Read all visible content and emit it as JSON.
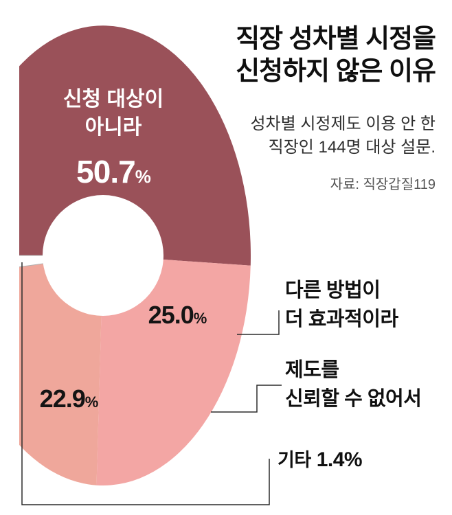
{
  "ui": {
    "title": {
      "line1": "직장 성차별 시정을",
      "line2": "신청하지 않은 이유"
    },
    "subtitle": {
      "line1": "성차별 시정제도 이용 안 한",
      "line2": "직장인 144명 대상 설문."
    },
    "source": "자료: 직장갑질119",
    "slice1": {
      "line1": "신청 대상이",
      "line2": "아니라",
      "value": "50.7",
      "pct": "%"
    },
    "slice2": {
      "value": "25.0",
      "pct": "%"
    },
    "slice3": {
      "value": "22.9",
      "pct": "%"
    },
    "callout_method": {
      "line1": "다른 방법이",
      "line2": "더 효과적이라"
    },
    "callout_trust": {
      "line1": "제도를",
      "line2": "신뢰할 수 없어서"
    },
    "callout_other": {
      "label": "기타",
      "value": "1.4%"
    }
  },
  "chart_data": {
    "type": "pie",
    "title": "직장 성차별 시정을 신청하지 않은 이유",
    "subtitle": "성차별 시정제도 이용 안 한 직장인 144명 대상 설문.",
    "source": "자료: 직장갑질119",
    "unit": "%",
    "donut": true,
    "start": "west-clockwise",
    "slices": [
      {
        "label": "신청 대상이 아니라",
        "value": 50.7,
        "display": "50.7%",
        "color": "#9a5159"
      },
      {
        "label": "다른 방법이 더 효과적이라",
        "value": 25.0,
        "display": "25.0%",
        "color": "#f3a6a4"
      },
      {
        "label": "제도를 신뢰할 수 없어서",
        "value": 22.9,
        "display": "22.9%",
        "color": "#efa79b"
      },
      {
        "label": "기타",
        "value": 1.4,
        "display": "1.4%",
        "color": "#ffffff"
      }
    ]
  }
}
